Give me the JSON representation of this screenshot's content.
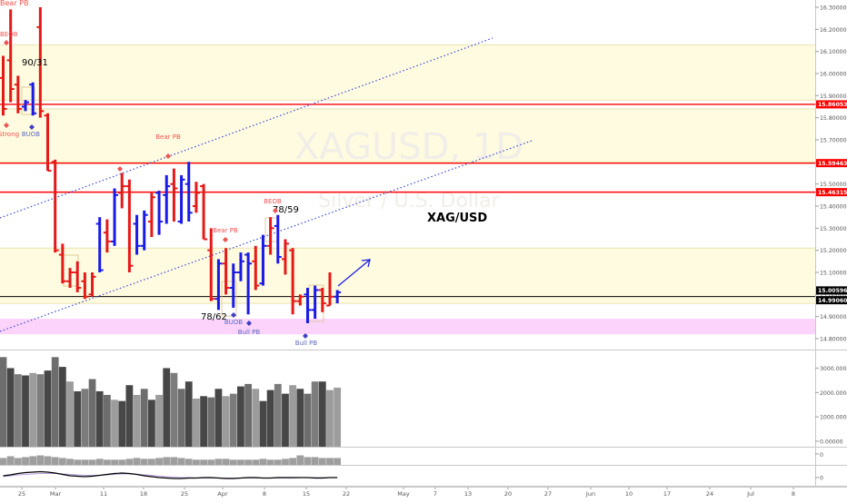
{
  "chart_data": [
    {
      "type": "candlestick",
      "symbol": "XAGUSD",
      "interval": "1D",
      "watermark": "XAGUSD, 1D",
      "watermark_sub": "Silver / U.S. Dollar",
      "title_annotation": "XAG/USD",
      "y_axis": {
        "ylim": [
          14.77,
          16.32
        ],
        "ticks": [
          "16.30000",
          "16.20000",
          "16.10000",
          "16.00000",
          "15.90000",
          "15.80000",
          "15.70000",
          "15.60000",
          "15.50000",
          "15.40000",
          "15.30000",
          "15.20000",
          "15.10000",
          "15.00000",
          "14.90000",
          "14.80000"
        ],
        "tick_values": [
          16.3,
          16.2,
          16.1,
          16.0,
          15.9,
          15.8,
          15.7,
          15.6,
          15.5,
          15.4,
          15.3,
          15.2,
          15.1,
          15.0,
          14.9,
          14.8
        ]
      },
      "price_labels": [
        {
          "value": 15.86053,
          "text": "15.86053",
          "color": "#ff0000"
        },
        {
          "value": 15.59463,
          "text": "15.59463",
          "color": "#ff0000"
        },
        {
          "value": 15.46315,
          "text": "15.46315",
          "color": "#ff0000"
        },
        {
          "value": 15.00596,
          "text": "15.00596",
          "color": "#000000"
        },
        {
          "value": 14.9906,
          "text": "14.99060",
          "color": "#000000"
        }
      ],
      "horizontal_lines": [
        {
          "value": 15.86053,
          "color": "#ff0000"
        },
        {
          "value": 15.59463,
          "color": "#ff0000"
        },
        {
          "value": 15.46315,
          "color": "#ff0000"
        },
        {
          "value": 14.9906,
          "color": "#000000"
        }
      ],
      "zones": [
        {
          "from": 15.88,
          "to": 16.13,
          "color": "#fffbe0"
        },
        {
          "from": 15.6,
          "to": 15.84,
          "color": "#fffbe0"
        },
        {
          "from": 14.96,
          "to": 15.21,
          "color": "#fffbe0"
        },
        {
          "from": 14.82,
          "to": 14.89,
          "color": "#fbd3fb"
        }
      ],
      "bars": [
        {
          "o": 15.98,
          "h": 16.08,
          "l": 15.81,
          "c": 15.84,
          "dir": "down"
        },
        {
          "o": 16.06,
          "h": 16.29,
          "l": 15.87,
          "c": 15.93,
          "dir": "down"
        },
        {
          "o": 15.95,
          "h": 15.99,
          "l": 15.82,
          "c": 15.84,
          "dir": "down"
        },
        {
          "o": 15.85,
          "h": 15.88,
          "l": 15.83,
          "c": 15.87,
          "dir": "up"
        },
        {
          "o": 15.95,
          "h": 15.96,
          "l": 15.81,
          "c": 15.82,
          "dir": "up"
        },
        {
          "o": 16.21,
          "h": 16.3,
          "l": 15.8,
          "c": 15.83,
          "dir": "down"
        },
        {
          "o": 15.81,
          "h": 15.82,
          "l": 15.56,
          "c": 15.56,
          "dir": "down"
        },
        {
          "o": 15.6,
          "h": 15.61,
          "l": 15.19,
          "c": 15.2,
          "dir": "down"
        },
        {
          "o": 15.18,
          "h": 15.23,
          "l": 15.05,
          "c": 15.06,
          "dir": "down"
        },
        {
          "o": 15.06,
          "h": 15.12,
          "l": 15.03,
          "c": 15.1,
          "dir": "down"
        },
        {
          "o": 15.1,
          "h": 15.15,
          "l": 15.01,
          "c": 15.03,
          "dir": "down"
        },
        {
          "o": 15.06,
          "h": 15.1,
          "l": 14.98,
          "c": 14.99,
          "dir": "down"
        },
        {
          "o": 15.0,
          "h": 15.1,
          "l": 14.99,
          "c": 15.08,
          "dir": "down"
        },
        {
          "o": 15.32,
          "h": 15.35,
          "l": 15.1,
          "c": 15.11,
          "dir": "up"
        },
        {
          "o": 15.28,
          "h": 15.34,
          "l": 15.19,
          "c": 15.24,
          "dir": "down"
        },
        {
          "o": 15.24,
          "h": 15.48,
          "l": 15.22,
          "c": 15.45,
          "dir": "up"
        },
        {
          "o": 15.46,
          "h": 15.55,
          "l": 15.39,
          "c": 15.49,
          "dir": "down"
        },
        {
          "o": 15.49,
          "h": 15.52,
          "l": 15.1,
          "c": 15.13,
          "dir": "down"
        },
        {
          "o": 15.32,
          "h": 15.36,
          "l": 15.18,
          "c": 15.22,
          "dir": "up"
        },
        {
          "o": 15.22,
          "h": 15.38,
          "l": 15.2,
          "c": 15.36,
          "dir": "up"
        },
        {
          "o": 15.33,
          "h": 15.46,
          "l": 15.26,
          "c": 15.44,
          "dir": "down"
        },
        {
          "o": 15.46,
          "h": 15.47,
          "l": 15.27,
          "c": 15.33,
          "dir": "up"
        },
        {
          "o": 15.45,
          "h": 15.54,
          "l": 15.32,
          "c": 15.49,
          "dir": "up"
        },
        {
          "o": 15.5,
          "h": 15.57,
          "l": 15.33,
          "c": 15.48,
          "dir": "down"
        },
        {
          "o": 15.33,
          "h": 15.54,
          "l": 15.32,
          "c": 15.52,
          "dir": "up"
        },
        {
          "o": 15.5,
          "h": 15.6,
          "l": 15.33,
          "c": 15.37,
          "dir": "up"
        },
        {
          "o": 15.4,
          "h": 15.51,
          "l": 15.37,
          "c": 15.46,
          "dir": "down"
        },
        {
          "o": 15.49,
          "h": 15.5,
          "l": 15.25,
          "c": 15.25,
          "dir": "down"
        },
        {
          "o": 15.2,
          "h": 15.3,
          "l": 14.97,
          "c": 14.98,
          "dir": "down"
        },
        {
          "o": 14.98,
          "h": 15.16,
          "l": 14.93,
          "c": 15.14,
          "dir": "up"
        },
        {
          "o": 15.14,
          "h": 15.21,
          "l": 15.0,
          "c": 15.03,
          "dir": "down"
        },
        {
          "o": 15.03,
          "h": 15.14,
          "l": 14.94,
          "c": 15.1,
          "dir": "up"
        },
        {
          "o": 15.1,
          "h": 15.19,
          "l": 15.06,
          "c": 15.15,
          "dir": "up"
        },
        {
          "o": 15.18,
          "h": 15.19,
          "l": 14.91,
          "c": 15.14,
          "dir": "up"
        },
        {
          "o": 15.15,
          "h": 15.22,
          "l": 15.02,
          "c": 15.04,
          "dir": "down"
        },
        {
          "o": 15.05,
          "h": 15.27,
          "l": 15.04,
          "c": 15.22,
          "dir": "up"
        },
        {
          "o": 15.22,
          "h": 15.35,
          "l": 15.18,
          "c": 15.3,
          "dir": "down"
        },
        {
          "o": 15.31,
          "h": 15.36,
          "l": 15.14,
          "c": 15.17,
          "dir": "up"
        },
        {
          "o": 15.16,
          "h": 15.25,
          "l": 15.09,
          "c": 15.23,
          "dir": "down"
        },
        {
          "o": 15.2,
          "h": 15.21,
          "l": 14.91,
          "c": 14.97,
          "dir": "down"
        },
        {
          "o": 14.97,
          "h": 15.0,
          "l": 14.95,
          "c": 14.99,
          "dir": "down"
        },
        {
          "o": 15.0,
          "h": 15.03,
          "l": 14.87,
          "c": 14.93,
          "dir": "up"
        },
        {
          "o": 14.93,
          "h": 15.04,
          "l": 14.89,
          "c": 15.02,
          "dir": "up"
        },
        {
          "o": 15.02,
          "h": 15.03,
          "l": 14.92,
          "c": 14.96,
          "dir": "down"
        },
        {
          "o": 14.95,
          "h": 15.1,
          "l": 14.95,
          "c": 14.99,
          "dir": "down"
        },
        {
          "o": 14.99,
          "h": 15.02,
          "l": 14.96,
          "c": 15.01,
          "dir": "up"
        }
      ],
      "annotations": [
        {
          "text": "Bear PB",
          "color": "#ef5350"
        },
        {
          "text": "BEOB",
          "color": "#ef5350"
        },
        {
          "text": "90/31",
          "color": "#000000"
        },
        {
          "text": "Strong",
          "color": "#ef5350"
        },
        {
          "text": "BUOB",
          "color": "#5c6bc0"
        },
        {
          "text": "Bear PB",
          "color": "#ef5350"
        },
        {
          "text": "Bear PB",
          "color": "#ef5350"
        },
        {
          "text": "BEOB",
          "color": "#ef5350"
        },
        {
          "text": "78/59",
          "color": "#000000"
        },
        {
          "text": "78/62",
          "color": "#000000"
        },
        {
          "text": "BUOB",
          "color": "#5c6bc0"
        },
        {
          "text": "Bull PB",
          "color": "#5c6bc0"
        },
        {
          "text": "Bull PB",
          "color": "#5c6bc0"
        }
      ],
      "x_axis": {
        "tick_labels": [
          "25",
          "Mar",
          "11",
          "18",
          "25",
          "Apr",
          "8",
          "15",
          "22",
          "May",
          "7",
          "13",
          "20",
          "27",
          "Jun",
          "10",
          "17",
          "24",
          "Jul",
          "8"
        ]
      }
    },
    {
      "type": "bar",
      "name": "volume",
      "y_axis": {
        "ticks": [
          "3000.00000",
          "2000.00000",
          "1000.00000",
          "0.00000"
        ],
        "tick_values": [
          3000,
          2000,
          1000,
          0
        ]
      },
      "values": [
        3450,
        3000,
        2750,
        2700,
        2800,
        2750,
        2900,
        3450,
        3050,
        2450,
        2050,
        2150,
        2550,
        2050,
        1900,
        1700,
        1650,
        2300,
        1900,
        2150,
        1700,
        1900,
        3000,
        2800,
        2150,
        2450,
        1750,
        1850,
        1800,
        2150,
        1850,
        1950,
        2250,
        2350,
        2150,
        1650,
        2100,
        2350,
        1950,
        2300,
        2150,
        1950,
        2450,
        2450,
        2100,
        2200
      ],
      "shades": [
        "#6d6d6d",
        "#474747",
        "#7c7c7c",
        "#474747",
        "#9c9c9c",
        "#7c7c7c",
        "#474747",
        "#6d6d6d",
        "#474747",
        "#9c9c9c",
        "#474747",
        "#7c7c7c",
        "#6d6d6d",
        "#474747",
        "#6d6d6d",
        "#9c9c9c",
        "#474747",
        "#474747",
        "#9c9c9c",
        "#6d6d6d",
        "#474747",
        "#9c9c9c",
        "#474747",
        "#7c7c7c",
        "#6d6d6d",
        "#474747",
        "#9c9c9c",
        "#474747",
        "#6d6d6d",
        "#474747",
        "#9c9c9c",
        "#7c7c7c",
        "#474747",
        "#6d6d6d",
        "#9c9c9c",
        "#474747",
        "#474747",
        "#7c7c7c",
        "#474747",
        "#9c9c9c",
        "#474747",
        "#6d6d6d",
        "#7c7c7c",
        "#474747",
        "#9c9c9c",
        "#9c9c9c"
      ],
      "ylim": [
        0,
        3500
      ]
    },
    {
      "type": "bar",
      "name": "histogram",
      "y_axis": {
        "ticks": [
          "0"
        ]
      },
      "values": [
        0.4,
        0.5,
        0.4,
        0.45,
        0.5,
        0.55,
        0.5,
        0.45,
        0.4,
        0.35,
        0.3,
        0.3,
        0.3,
        0.35,
        0.3,
        0.3,
        0.3,
        0.35,
        0.4,
        0.35,
        0.35,
        0.4,
        0.45,
        0.45,
        0.4,
        0.35,
        0.3,
        0.3,
        0.3,
        0.35,
        0.35,
        0.3,
        0.3,
        0.3,
        0.3,
        0.35,
        0.3,
        0.3,
        0.35,
        0.4,
        0.55,
        0.45,
        0.45,
        0.4,
        0.4,
        0.4
      ],
      "color": "#9e9e9e",
      "ylim": [
        0,
        1
      ]
    },
    {
      "type": "line",
      "name": "oscillator",
      "y_axis": {
        "ticks": [
          "0"
        ]
      },
      "series": [
        {
          "values": [
            0.2,
            0.3,
            0.45,
            0.55,
            0.6,
            0.65,
            0.6,
            0.5,
            0.35,
            0.2,
            0.15,
            0.1,
            0.15,
            0.25,
            0.35,
            0.45,
            0.5,
            0.45,
            0.35,
            0.2,
            0.1,
            0.0,
            -0.05,
            -0.1,
            -0.1,
            -0.05,
            -0.05,
            0.0,
            0.0,
            -0.05,
            -0.1,
            -0.1,
            -0.05,
            0.0,
            0.0,
            -0.05,
            -0.05,
            0.0,
            0.0,
            0.0,
            0.0,
            0.0,
            -0.05,
            -0.05,
            0.0,
            0.0
          ],
          "color": "#000000"
        },
        {
          "values": [
            0.1,
            0.2,
            0.3,
            0.35,
            0.4,
            0.45,
            0.45,
            0.45,
            0.4,
            0.35,
            0.3,
            0.25,
            0.25,
            0.25,
            0.3,
            0.35,
            0.4,
            0.4,
            0.35,
            0.3,
            0.25,
            0.15,
            0.1,
            0.05,
            0.0,
            0.0,
            -0.05,
            -0.05,
            -0.05,
            -0.05,
            -0.05,
            -0.05,
            -0.05,
            -0.05,
            -0.05,
            -0.05,
            -0.05,
            -0.05,
            -0.05,
            -0.05,
            0.0,
            0.0,
            0.0,
            0.0,
            0.0,
            0.0
          ],
          "color": "#b39ddb"
        }
      ],
      "ylim": [
        -0.6,
        1.0
      ]
    }
  ]
}
